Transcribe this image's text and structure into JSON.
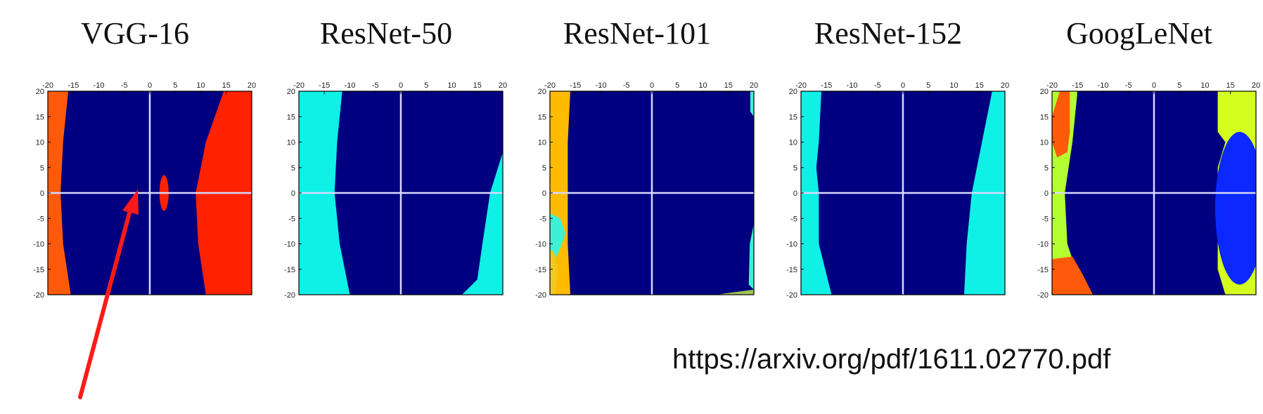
{
  "source_url": "https://arxiv.org/pdf/1611.02770.pdf",
  "colors": {
    "background_region": "#000080",
    "axis_line": "#d9d9ff",
    "arrow": "#ff1a1a"
  },
  "chart_data": [
    {
      "type": "heatmap",
      "title": "VGG-16",
      "xlim": [
        -20,
        20
      ],
      "ylim": [
        -20,
        20
      ],
      "x_ticks": [
        -20,
        -15,
        -10,
        -5,
        0,
        5,
        10,
        15,
        20
      ],
      "y_ticks": [
        20,
        15,
        10,
        5,
        0,
        -5,
        -10,
        -15,
        -20
      ],
      "x_tick_labels": [
        "-20",
        "-15",
        "-10",
        "-5",
        "0",
        "5",
        "10",
        "15",
        "20"
      ],
      "y_tick_labels": [
        "20",
        "15",
        "10",
        "5",
        "0",
        "-5",
        "-10",
        "-15",
        "-20"
      ],
      "grid": false,
      "crosshair_at": [
        0,
        0
      ],
      "regions": [
        {
          "color": "#ff5a0a",
          "polygon": [
            [
              -20,
              20
            ],
            [
              -16,
              20
            ],
            [
              -17,
              10
            ],
            [
              -17.5,
              0
            ],
            [
              -17,
              -10
            ],
            [
              -15.5,
              -20
            ],
            [
              -20,
              -20
            ]
          ]
        },
        {
          "color": "#ff2200",
          "polygon": [
            [
              20,
              20
            ],
            [
              14.5,
              20
            ],
            [
              11,
              10
            ],
            [
              9,
              0
            ],
            [
              9.5,
              -10
            ],
            [
              11,
              -20
            ],
            [
              20,
              -20
            ]
          ]
        },
        {
          "color": "#ff2200",
          "ellipse": {
            "cx": 2.8,
            "cy": 0,
            "rx": 0.9,
            "ry": 3.5
          }
        }
      ]
    },
    {
      "type": "heatmap",
      "title": "ResNet-50",
      "xlim": [
        -20,
        20
      ],
      "ylim": [
        -20,
        20
      ],
      "x_ticks": [
        -20,
        -15,
        -10,
        -5,
        0,
        5,
        10,
        15,
        20
      ],
      "y_ticks": [
        20,
        15,
        10,
        5,
        0,
        -5,
        -10,
        -15,
        -20
      ],
      "x_tick_labels": [
        "-20",
        "-15",
        "-10",
        "-5",
        "0",
        "5",
        "10",
        "15",
        "20"
      ],
      "y_tick_labels": [
        "20",
        "15",
        "10",
        "5",
        "0",
        "-5",
        "-10",
        "-15",
        "-20"
      ],
      "grid": false,
      "crosshair_at": [
        0,
        0
      ],
      "regions": [
        {
          "color": "#0ff0e6",
          "polygon": [
            [
              -20,
              20
            ],
            [
              -11.5,
              20
            ],
            [
              -12.5,
              10
            ],
            [
              -13,
              0
            ],
            [
              -12,
              -10
            ],
            [
              -10,
              -20
            ],
            [
              -20,
              -20
            ]
          ]
        },
        {
          "color": "#0ff0e6",
          "polygon": [
            [
              20,
              8
            ],
            [
              17.5,
              0
            ],
            [
              16,
              -10
            ],
            [
              15,
              -17
            ],
            [
              12,
              -20
            ],
            [
              20,
              -20
            ]
          ]
        }
      ]
    },
    {
      "type": "heatmap",
      "title": "ResNet-101",
      "xlim": [
        -20,
        20
      ],
      "ylim": [
        -20,
        20
      ],
      "x_ticks": [
        -20,
        -15,
        -10,
        -5,
        0,
        5,
        10,
        15,
        20
      ],
      "y_ticks": [
        20,
        15,
        10,
        5,
        0,
        -5,
        -10,
        -15,
        -20
      ],
      "x_tick_labels": [
        "-20",
        "-15",
        "-10",
        "-5",
        "0",
        "5",
        "10",
        "15",
        "20"
      ],
      "y_tick_labels": [
        "20",
        "15",
        "10",
        "5",
        "0",
        "-5",
        "-10",
        "-15",
        "-20"
      ],
      "grid": false,
      "crosshair_at": [
        0,
        0
      ],
      "regions": [
        {
          "color": "#ffbb00",
          "polygon": [
            [
              -20,
              20
            ],
            [
              -16,
              20
            ],
            [
              -16.5,
              10
            ],
            [
              -16.5,
              0
            ],
            [
              -16.5,
              -10
            ],
            [
              -16,
              -20
            ],
            [
              -20,
              -20
            ]
          ]
        },
        {
          "color": "#3ef0d6",
          "polygon": [
            [
              -20,
              -4
            ],
            [
              -18,
              -5
            ],
            [
              -17,
              -8
            ],
            [
              -18,
              -11
            ],
            [
              -19,
              -13
            ],
            [
              -20,
              -20
            ]
          ]
        },
        {
          "color": "#f0c820",
          "polygon": [
            [
              -20,
              -11
            ],
            [
              -19,
              -12
            ],
            [
              -18.5,
              -16
            ],
            [
              -19,
              -20
            ],
            [
              -20,
              -20
            ]
          ]
        },
        {
          "color": "#3ef0d6",
          "polygon": [
            [
              20,
              20
            ],
            [
              19.3,
              20
            ],
            [
              19.3,
              16
            ],
            [
              20,
              15
            ]
          ]
        },
        {
          "color": "#3ef0d6",
          "polygon": [
            [
              20,
              -6
            ],
            [
              19.2,
              -10
            ],
            [
              19,
              -18
            ],
            [
              20,
              -19
            ]
          ]
        },
        {
          "color": "#a0c050",
          "polygon": [
            [
              20,
              -19
            ],
            [
              14,
              -19.8
            ],
            [
              13,
              -20
            ],
            [
              20,
              -20
            ]
          ]
        }
      ]
    },
    {
      "type": "heatmap",
      "title": "ResNet-152",
      "xlim": [
        -20,
        20
      ],
      "ylim": [
        -20,
        20
      ],
      "x_ticks": [
        -20,
        -15,
        -10,
        -5,
        0,
        5,
        10,
        15,
        20
      ],
      "y_ticks": [
        20,
        15,
        10,
        5,
        0,
        -5,
        -10,
        -15,
        -20
      ],
      "x_tick_labels": [
        "-20",
        "-15",
        "-10",
        "-5",
        "0",
        "5",
        "10",
        "15",
        "20"
      ],
      "y_tick_labels": [
        "20",
        "15",
        "10",
        "5",
        "0",
        "-5",
        "-10",
        "-15",
        "-20"
      ],
      "grid": false,
      "crosshair_at": [
        0,
        0
      ],
      "regions": [
        {
          "color": "#0ff0e6",
          "polygon": [
            [
              -20,
              20
            ],
            [
              -16,
              20
            ],
            [
              -16.5,
              10
            ],
            [
              -17,
              5
            ],
            [
              -16.5,
              0
            ],
            [
              -16.5,
              -10
            ],
            [
              -14,
              -20
            ],
            [
              -20,
              -20
            ]
          ]
        },
        {
          "color": "#0ff0e6",
          "polygon": [
            [
              20,
              20
            ],
            [
              17.5,
              20
            ],
            [
              15.5,
              10
            ],
            [
              13.5,
              0
            ],
            [
              12.5,
              -10
            ],
            [
              12,
              -20
            ],
            [
              20,
              -20
            ]
          ]
        }
      ]
    },
    {
      "type": "heatmap",
      "title": "GoogLeNet",
      "xlim": [
        -20,
        20
      ],
      "ylim": [
        -20,
        20
      ],
      "x_ticks": [
        -20,
        -15,
        -10,
        -5,
        0,
        5,
        10,
        15,
        20
      ],
      "y_ticks": [
        20,
        15,
        10,
        5,
        0,
        -5,
        -10,
        -15,
        -20
      ],
      "x_tick_labels": [
        "-20",
        "-15",
        "-10",
        "-5",
        "0",
        "5",
        "10",
        "15",
        "20"
      ],
      "y_tick_labels": [
        "20",
        "15",
        "10",
        "5",
        "0",
        "-5",
        "-10",
        "-15",
        "-20"
      ],
      "grid": false,
      "crosshair_at": [
        0,
        0
      ],
      "regions": [
        {
          "color": "#b4ff32",
          "polygon": [
            [
              -20,
              20
            ],
            [
              -15,
              20
            ],
            [
              -16,
              10
            ],
            [
              -17.5,
              0
            ],
            [
              -17,
              -10
            ],
            [
              -16,
              -13
            ],
            [
              -20,
              -14
            ]
          ]
        },
        {
          "color": "#ff5a0a",
          "polygon": [
            [
              -18.5,
              20
            ],
            [
              -16.5,
              20
            ],
            [
              -16.5,
              12
            ],
            [
              -17,
              8
            ],
            [
              -19,
              7
            ],
            [
              -20,
              10
            ],
            [
              -20,
              15
            ]
          ]
        },
        {
          "color": "#ff5a0a",
          "polygon": [
            [
              -20,
              -13
            ],
            [
              -16,
              -12.5
            ],
            [
              -14,
              -16
            ],
            [
              -12,
              -20
            ],
            [
              -20,
              -20
            ]
          ]
        },
        {
          "color": "#d4ff1e",
          "polygon": [
            [
              20,
              20
            ],
            [
              12.5,
              20
            ],
            [
              12.5,
              12
            ],
            [
              14,
              10
            ],
            [
              12.5,
              5
            ],
            [
              12.5,
              -10
            ],
            [
              12.5,
              -15
            ],
            [
              14,
              -20
            ],
            [
              20,
              -20
            ]
          ]
        },
        {
          "color": "#0a28ff",
          "ellipse": {
            "cx": 16.8,
            "cy": -3,
            "rx": 4.8,
            "ry": 15
          }
        }
      ]
    }
  ]
}
